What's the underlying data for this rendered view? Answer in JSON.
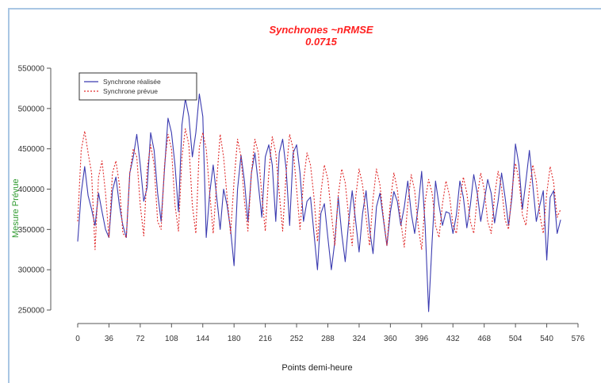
{
  "chart_data": {
    "type": "line",
    "title": "Synchrones   ~nRMSE",
    "subtitle": "0.0715",
    "xlabel": "Points demi-heure",
    "ylabel": "Mesure Prévue",
    "xlim": [
      0,
      576
    ],
    "ylim": [
      250000,
      550000
    ],
    "x_ticks": [
      0,
      36,
      72,
      108,
      144,
      180,
      216,
      252,
      288,
      324,
      360,
      396,
      432,
      468,
      504,
      540,
      576
    ],
    "y_ticks": [
      250000,
      300000,
      350000,
      400000,
      450000,
      500000,
      550000
    ],
    "y_tick_labels": [
      "250000",
      "300000",
      "350000",
      "400000",
      "450000",
      "500000",
      "550000"
    ],
    "legend_position": "top-left",
    "series": [
      {
        "name": "Synchrone réalisée",
        "color": "#3b3bb0",
        "style": "solid",
        "x": [
          0,
          4,
          8,
          12,
          16,
          20,
          24,
          28,
          32,
          36,
          40,
          44,
          48,
          52,
          56,
          60,
          64,
          68,
          72,
          76,
          80,
          84,
          88,
          92,
          96,
          100,
          104,
          108,
          112,
          116,
          120,
          124,
          128,
          132,
          136,
          140,
          144,
          148,
          152,
          156,
          160,
          164,
          168,
          172,
          176,
          180,
          184,
          188,
          192,
          196,
          200,
          204,
          208,
          212,
          216,
          220,
          224,
          228,
          232,
          236,
          240,
          244,
          248,
          252,
          256,
          260,
          264,
          268,
          272,
          276,
          280,
          284,
          288,
          292,
          296,
          300,
          304,
          308,
          312,
          316,
          320,
          324,
          328,
          332,
          336,
          340,
          344,
          348,
          352,
          356,
          360,
          364,
          368,
          372,
          376,
          380,
          384,
          388,
          392,
          396,
          400,
          404,
          408,
          412,
          416,
          420,
          424,
          428,
          432,
          436,
          440,
          444,
          448,
          452,
          456,
          460,
          464,
          468,
          472,
          476,
          480,
          484,
          488,
          492,
          496,
          500,
          504,
          508,
          512,
          516,
          520,
          524,
          528,
          532,
          536,
          540,
          544,
          548,
          552,
          556
        ],
        "y": [
          335000,
          395000,
          428000,
          392000,
          375000,
          355000,
          395000,
          372000,
          350000,
          340000,
          398000,
          415000,
          380000,
          355000,
          340000,
          420000,
          440000,
          468000,
          430000,
          385000,
          402000,
          470000,
          448000,
          395000,
          360000,
          425000,
          488000,
          470000,
          430000,
          372000,
          480000,
          512000,
          490000,
          440000,
          470000,
          518000,
          490000,
          340000,
          395000,
          430000,
          390000,
          350000,
          400000,
          380000,
          350000,
          305000,
          400000,
          442000,
          410000,
          360000,
          420000,
          445000,
          405000,
          365000,
          440000,
          455000,
          430000,
          360000,
          445000,
          462000,
          425000,
          355000,
          445000,
          455000,
          420000,
          360000,
          385000,
          390000,
          345000,
          300000,
          370000,
          382000,
          340000,
          300000,
          335000,
          390000,
          345000,
          310000,
          360000,
          398000,
          360000,
          322000,
          370000,
          398000,
          350000,
          320000,
          378000,
          395000,
          362000,
          330000,
          372000,
          397000,
          385000,
          355000,
          378000,
          410000,
          370000,
          345000,
          378000,
          422000,
          355000,
          248000,
          335000,
          410000,
          380000,
          355000,
          372000,
          370000,
          345000,
          368000,
          410000,
          390000,
          352000,
          380000,
          418000,
          395000,
          360000,
          385000,
          412000,
          395000,
          358000,
          385000,
          420000,
          390000,
          355000,
          390000,
          456000,
          430000,
          375000,
          410000,
          448000,
          405000,
          360000,
          380000,
          398000,
          312000,
          390000,
          398000,
          345000,
          362000
        ]
      },
      {
        "name": "Synchrone prévue",
        "color": "#e02a2a",
        "style": "dashed",
        "x": [
          0,
          4,
          8,
          12,
          16,
          20,
          24,
          28,
          32,
          36,
          40,
          44,
          48,
          52,
          56,
          60,
          64,
          68,
          72,
          76,
          80,
          84,
          88,
          92,
          96,
          100,
          104,
          108,
          112,
          116,
          120,
          124,
          128,
          132,
          136,
          140,
          144,
          148,
          152,
          156,
          160,
          164,
          168,
          172,
          176,
          180,
          184,
          188,
          192,
          196,
          200,
          204,
          208,
          212,
          216,
          220,
          224,
          228,
          232,
          236,
          240,
          244,
          248,
          252,
          256,
          260,
          264,
          268,
          272,
          276,
          280,
          284,
          288,
          292,
          296,
          300,
          304,
          308,
          312,
          316,
          320,
          324,
          328,
          332,
          336,
          340,
          344,
          348,
          352,
          356,
          360,
          364,
          368,
          372,
          376,
          380,
          384,
          388,
          392,
          396,
          400,
          404,
          408,
          412,
          416,
          420,
          424,
          428,
          432,
          436,
          440,
          444,
          448,
          452,
          456,
          460,
          464,
          468,
          472,
          476,
          480,
          484,
          488,
          492,
          496,
          500,
          504,
          508,
          512,
          516,
          520,
          524,
          528,
          532,
          536,
          540,
          544,
          548,
          552,
          556
        ],
        "y": [
          360000,
          448000,
          472000,
          445000,
          420000,
          325000,
          415000,
          435000,
          395000,
          340000,
          420000,
          435000,
          405000,
          345000,
          340000,
          420000,
          450000,
          440000,
          380000,
          342000,
          425000,
          455000,
          430000,
          360000,
          350000,
          430000,
          468000,
          450000,
          380000,
          348000,
          440000,
          475000,
          455000,
          380000,
          345000,
          452000,
          470000,
          450000,
          395000,
          345000,
          410000,
          468000,
          440000,
          390000,
          345000,
          410000,
          462000,
          440000,
          385000,
          348000,
          420000,
          462000,
          445000,
          392000,
          348000,
          420000,
          465000,
          445000,
          395000,
          348000,
          420000,
          468000,
          450000,
          400000,
          350000,
          410000,
          445000,
          430000,
          390000,
          335000,
          395000,
          430000,
          412000,
          370000,
          330000,
          392000,
          425000,
          408000,
          365000,
          330000,
          390000,
          425000,
          405000,
          365000,
          330000,
          388000,
          425000,
          405000,
          365000,
          330000,
          385000,
          420000,
          400000,
          360000,
          328000,
          382000,
          418000,
          398000,
          355000,
          325000,
          385000,
          412000,
          395000,
          355000,
          340000,
          382000,
          410000,
          392000,
          355000,
          345000,
          385000,
          415000,
          395000,
          360000,
          345000,
          390000,
          420000,
          400000,
          360000,
          345000,
          392000,
          422000,
          402000,
          362000,
          350000,
          398000,
          432000,
          412000,
          368000,
          355000,
          400000,
          430000,
          410000,
          368000,
          345000,
          395000,
          428000,
          408000,
          365000,
          375000
        ]
      }
    ]
  }
}
